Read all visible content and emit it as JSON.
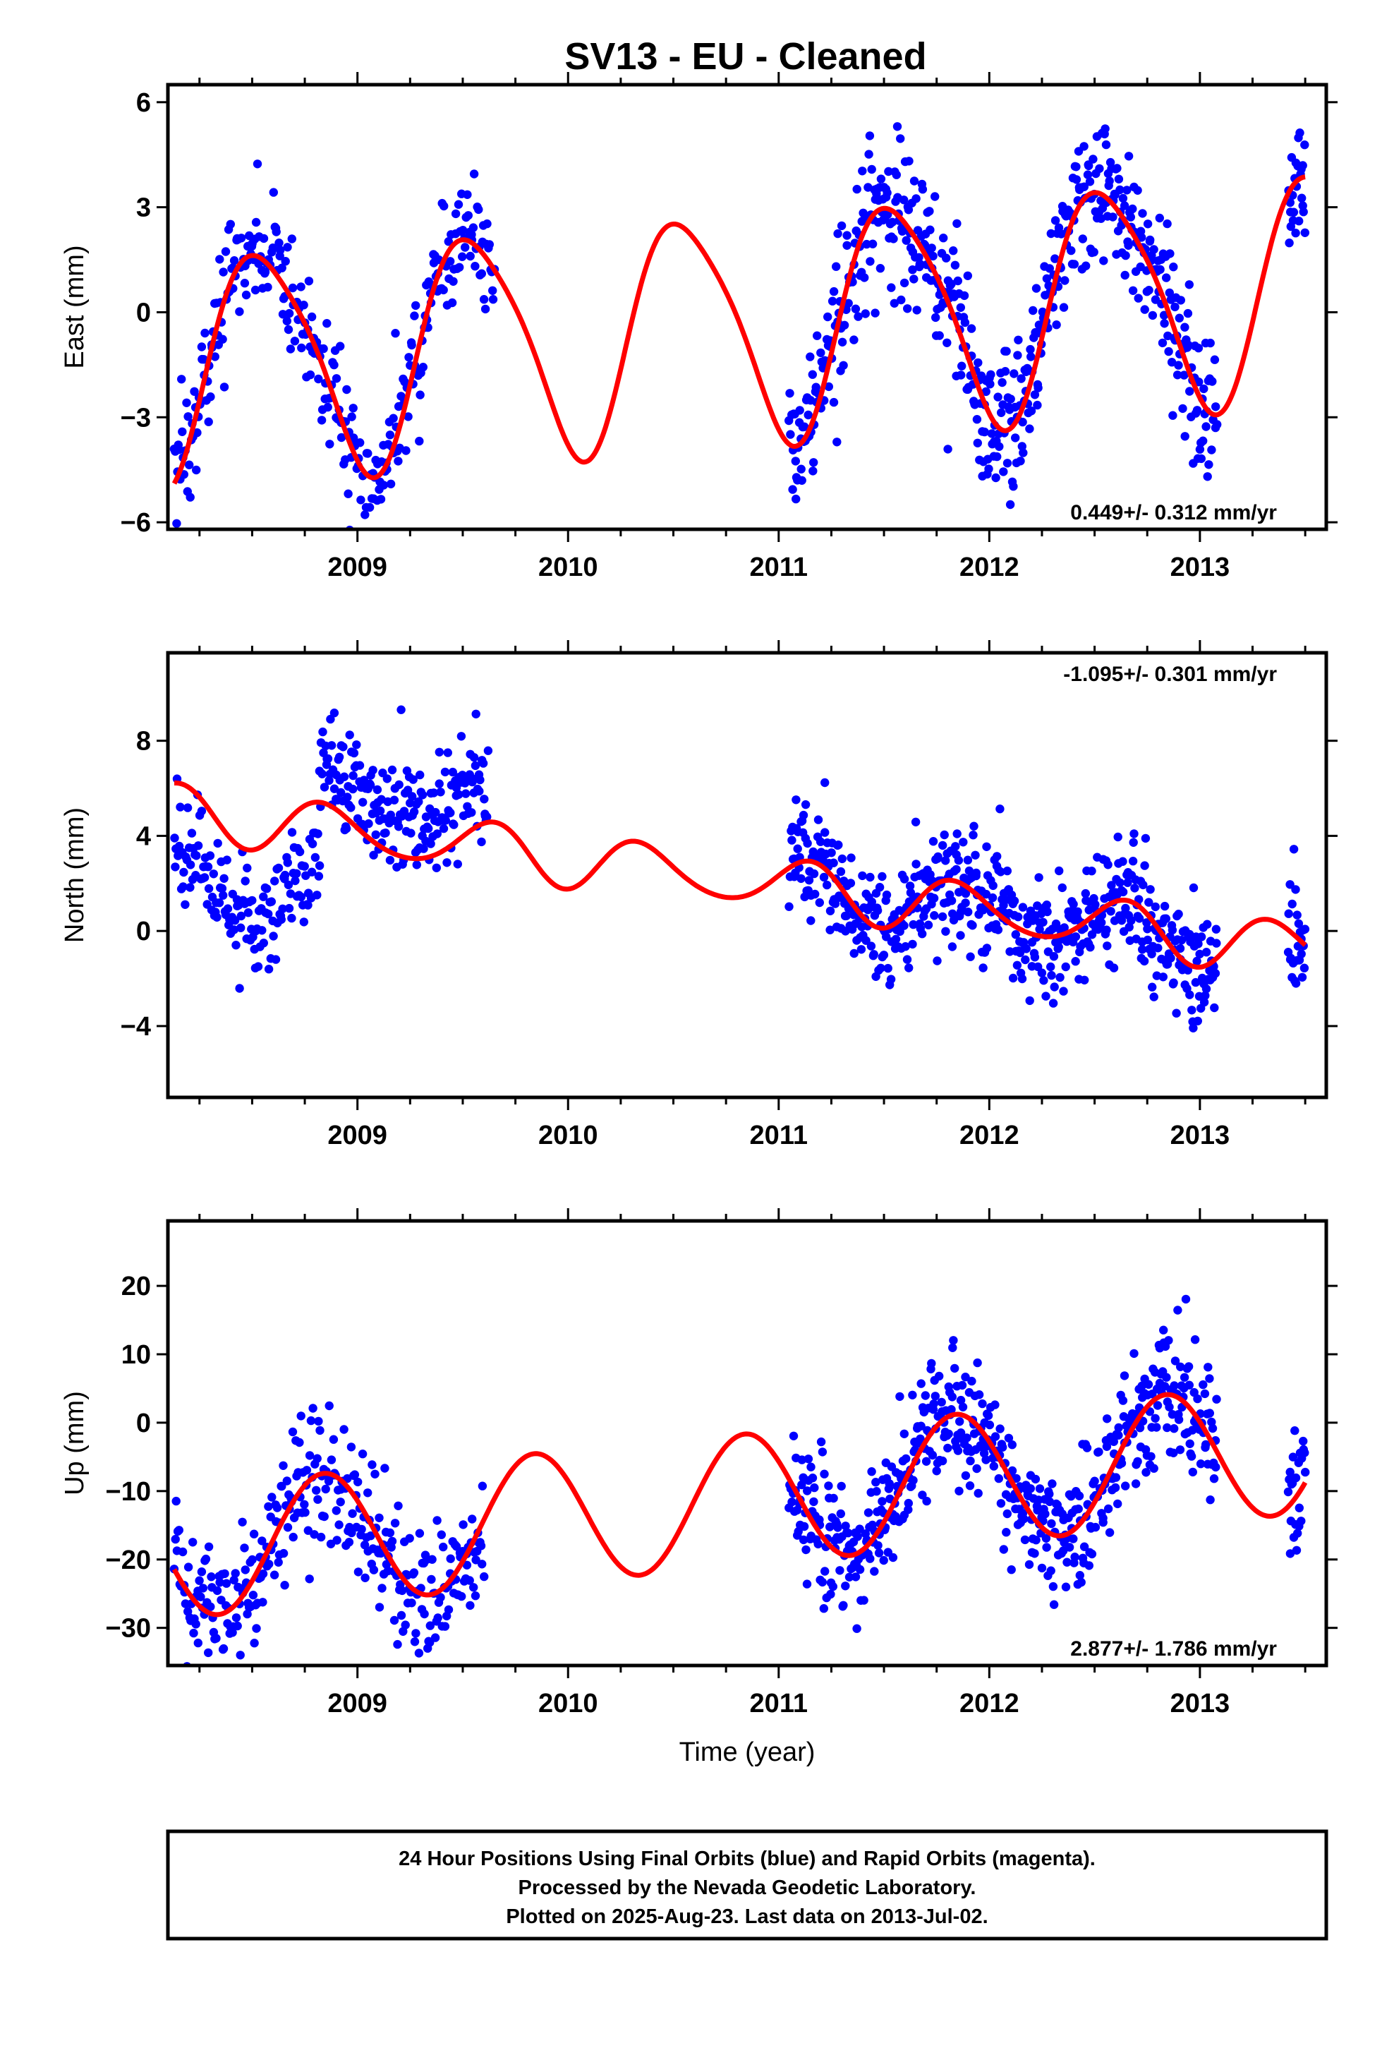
{
  "title": "SV13  - EU - Cleaned",
  "footer": {
    "line1": "24 Hour Positions Using Final Orbits (blue) and Rapid Orbits (magenta).",
    "line2": "Processed by the Nevada Geodetic Laboratory.",
    "line3": "Plotted on 2025-Aug-23. Last data on 2013-Jul-02."
  },
  "colors": {
    "data_points": "#0000ff",
    "model_curve": "#ff0000",
    "frame": "#000000"
  },
  "chart_data": [
    {
      "type": "scatter",
      "ylabel": "East (mm)",
      "xlabel": "",
      "xlim": [
        2008.1,
        2013.6
      ],
      "ylim": [
        -6.2,
        6.5
      ],
      "yticks": [
        6,
        3,
        0,
        -3,
        -6
      ],
      "ytick_labels": [
        "6",
        "3",
        "0",
        "−3",
        "−6"
      ],
      "xticks": [
        2009,
        2010,
        2011,
        2012,
        2013
      ],
      "xtick_labels": [
        "2009",
        "2010",
        "2011",
        "2012",
        "2013"
      ],
      "rate_label": "0.449+/- 0.312 mm/yr",
      "rate_position": "bottom-right",
      "series": [
        {
          "kind": "points",
          "color": "#0000ff",
          "segments": [
            {
              "t0": 2008.13,
              "t1": 2009.65,
              "n": 320,
              "sd": 0.9
            },
            {
              "t0": 2011.05,
              "t1": 2013.08,
              "n": 560,
              "sd": 1.1
            },
            {
              "t0": 2013.42,
              "t1": 2013.5,
              "n": 25,
              "sd": 1.0
            }
          ]
        },
        {
          "kind": "model",
          "color": "#ff0000",
          "offset": -0.3,
          "trend": 0.449,
          "harmonics": [
            {
              "amp": 3.2,
              "phase": 0.3,
              "period": 1.0
            },
            {
              "amp": 0.5,
              "phase": 0.5,
              "period": 0.5
            }
          ],
          "offset_steps": [
            {
              "t": 2011.0,
              "step": 0.0
            }
          ]
        }
      ]
    },
    {
      "type": "scatter",
      "ylabel": "North (mm)",
      "xlabel": "",
      "xlim": [
        2008.1,
        2013.6
      ],
      "ylim": [
        -7.0,
        11.7
      ],
      "yticks": [
        8,
        4,
        0,
        -4
      ],
      "ytick_labels": [
        "8",
        "4",
        "0",
        "−4"
      ],
      "xticks": [
        2009,
        2010,
        2011,
        2012,
        2013
      ],
      "xtick_labels": [
        "2009",
        "2010",
        "2011",
        "2012",
        "2013"
      ],
      "rate_label": "-1.095+/- 0.301 mm/yr",
      "rate_position": "top-right",
      "series": [
        {
          "kind": "points",
          "color": "#0000ff",
          "segments": [
            {
              "t0": 2008.13,
              "t1": 2008.82,
              "n": 150,
              "sd": 1.2,
              "bias": -2.9
            },
            {
              "t0": 2008.82,
              "t1": 2009.62,
              "n": 200,
              "sd": 1.2,
              "bias": 1.7
            },
            {
              "t0": 2011.05,
              "t1": 2013.08,
              "n": 560,
              "sd": 1.2,
              "bias": 0.0
            },
            {
              "t0": 2013.42,
              "t1": 2013.5,
              "n": 25,
              "sd": 1.3,
              "bias": 0.0
            }
          ]
        },
        {
          "kind": "model",
          "color": "#ff0000",
          "offset": 1.95,
          "trend": -1.095,
          "harmonics": [
            {
              "amp": 1.05,
              "phase": -0.1,
              "period": 0.75
            },
            {
              "amp": 0.25,
              "phase": 0.2,
              "period": 0.5
            }
          ],
          "offset_steps": []
        }
      ]
    },
    {
      "type": "scatter",
      "ylabel": "Up (mm)",
      "xlabel": "Time (year)",
      "xlim": [
        2008.1,
        2013.6
      ],
      "ylim": [
        -35.5,
        29.5
      ],
      "yticks": [
        20,
        10,
        0,
        -10,
        -20,
        -30
      ],
      "ytick_labels": [
        "20",
        "10",
        "0",
        "−10",
        "−20",
        "−30"
      ],
      "xticks": [
        2009,
        2010,
        2011,
        2012,
        2013
      ],
      "xtick_labels": [
        "2009",
        "2010",
        "2011",
        "2012",
        "2013"
      ],
      "rate_label": "2.877+/- 1.786 mm/yr",
      "rate_position": "bottom-right",
      "series": [
        {
          "kind": "points",
          "color": "#0000ff",
          "segments": [
            {
              "t0": 2008.13,
              "t1": 2009.6,
              "n": 320,
              "sd": 4.8
            },
            {
              "t0": 2011.05,
              "t1": 2013.08,
              "n": 560,
              "sd": 4.6
            },
            {
              "t0": 2013.42,
              "t1": 2013.5,
              "n": 25,
              "sd": 4.5
            }
          ]
        },
        {
          "kind": "model",
          "color": "#ff0000",
          "offset": -10.8,
          "trend": 2.877,
          "harmonics": [
            {
              "amp": 9.6,
              "phase": -0.41,
              "period": 1.0
            }
          ],
          "offset_steps": []
        }
      ]
    }
  ]
}
